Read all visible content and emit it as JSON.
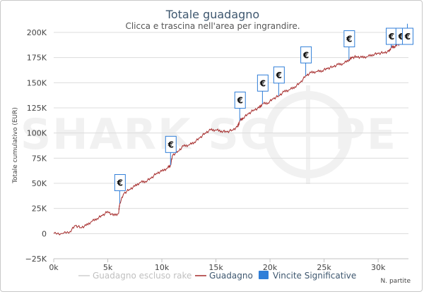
{
  "chart_data": {
    "type": "line",
    "title": "Totale guadagno",
    "subtitle": "Clicca e trascina nell'area per ingrandire.",
    "xlabel": "N. partite",
    "ylabel": "Totale cumulativo (EUR)",
    "xlim": [
      0,
      32800
    ],
    "ylim": [
      -25000,
      200000
    ],
    "x_ticks": [
      {
        "value": 0,
        "label": "0k"
      },
      {
        "value": 5000,
        "label": "5k"
      },
      {
        "value": 10000,
        "label": "10k"
      },
      {
        "value": 15000,
        "label": "15k"
      },
      {
        "value": 20000,
        "label": "20k"
      },
      {
        "value": 25000,
        "label": "25k"
      },
      {
        "value": 30000,
        "label": "30k"
      }
    ],
    "y_ticks": [
      {
        "value": -25000,
        "label": "−25K"
      },
      {
        "value": 0,
        "label": "0"
      },
      {
        "value": 25000,
        "label": "25K"
      },
      {
        "value": 50000,
        "label": "50K"
      },
      {
        "value": 75000,
        "label": "75K"
      },
      {
        "value": 100000,
        "label": "100K"
      },
      {
        "value": 125000,
        "label": "125K"
      },
      {
        "value": 150000,
        "label": "150K"
      },
      {
        "value": 175000,
        "label": "175K"
      },
      {
        "value": 200000,
        "label": "200K"
      }
    ],
    "grid": true,
    "legend_position": "bottom",
    "series": [
      {
        "name": "Guadagno",
        "color": "#a52a2a",
        "points": [
          [
            0,
            0
          ],
          [
            800,
            0
          ],
          [
            1500,
            2000
          ],
          [
            2000,
            8000
          ],
          [
            2500,
            6000
          ],
          [
            3000,
            8000
          ],
          [
            3500,
            12000
          ],
          [
            4000,
            15000
          ],
          [
            4500,
            18000
          ],
          [
            5000,
            22000
          ],
          [
            5500,
            18000
          ],
          [
            6000,
            20000
          ],
          [
            6100,
            30000
          ],
          [
            6500,
            40000
          ],
          [
            7000,
            44000
          ],
          [
            7500,
            47000
          ],
          [
            8000,
            51000
          ],
          [
            8500,
            52000
          ],
          [
            9000,
            55000
          ],
          [
            9500,
            60000
          ],
          [
            10000,
            62000
          ],
          [
            10500,
            65000
          ],
          [
            10800,
            68000
          ],
          [
            11000,
            78000
          ],
          [
            11500,
            82000
          ],
          [
            12000,
            87000
          ],
          [
            12500,
            88000
          ],
          [
            13000,
            91000
          ],
          [
            13500,
            95000
          ],
          [
            14000,
            100000
          ],
          [
            14500,
            103000
          ],
          [
            15000,
            103000
          ],
          [
            15500,
            102000
          ],
          [
            16000,
            101000
          ],
          [
            16500,
            103000
          ],
          [
            17000,
            106000
          ],
          [
            17200,
            112000
          ],
          [
            17500,
            115000
          ],
          [
            18000,
            119000
          ],
          [
            18500,
            123000
          ],
          [
            19000,
            125000
          ],
          [
            19300,
            129000
          ],
          [
            19800,
            130000
          ],
          [
            20300,
            134000
          ],
          [
            20800,
            137000
          ],
          [
            21300,
            141000
          ],
          [
            21800,
            143000
          ],
          [
            22300,
            146000
          ],
          [
            22800,
            150000
          ],
          [
            23300,
            157000
          ],
          [
            23800,
            160000
          ],
          [
            24300,
            161000
          ],
          [
            24800,
            162000
          ],
          [
            25300,
            164000
          ],
          [
            25800,
            166000
          ],
          [
            26300,
            168000
          ],
          [
            26800,
            169000
          ],
          [
            27300,
            173000
          ],
          [
            27600,
            175000
          ],
          [
            28000,
            176000
          ],
          [
            28500,
            175000
          ],
          [
            29000,
            176000
          ],
          [
            29500,
            178000
          ],
          [
            30000,
            179000
          ],
          [
            30500,
            180000
          ],
          [
            31000,
            181000
          ],
          [
            31200,
            185000
          ],
          [
            31500,
            186000
          ],
          [
            31800,
            188000
          ],
          [
            32100,
            189000
          ],
          [
            32400,
            194000
          ],
          [
            32700,
            196000
          ]
        ]
      },
      {
        "name": "Guadagno escluso rake",
        "color": "#cfcfcf",
        "points": []
      }
    ],
    "flags": {
      "name": "Vincite Significative",
      "symbol": "€",
      "color": "#2f7ed8",
      "points": [
        {
          "x": 6100,
          "y": 30000
        },
        {
          "x": 10800,
          "y": 68000
        },
        {
          "x": 17200,
          "y": 112000
        },
        {
          "x": 19300,
          "y": 129000
        },
        {
          "x": 20800,
          "y": 137000
        },
        {
          "x": 23300,
          "y": 157000
        },
        {
          "x": 27300,
          "y": 173000
        },
        {
          "x": 31200,
          "y": 185000
        },
        {
          "x": 32100,
          "y": 189000
        },
        {
          "x": 32700,
          "y": 196000
        }
      ]
    },
    "legend": [
      {
        "label": "Guadagno escluso rake",
        "color": "#cfcfcf",
        "type": "line"
      },
      {
        "label": "Guadagno",
        "color": "#a52a2a",
        "type": "line"
      },
      {
        "label": "Vincite Significative",
        "color": "#2f7ed8",
        "type": "box"
      }
    ]
  },
  "watermark": {
    "left": "SHARK SC",
    "right": "PE"
  }
}
